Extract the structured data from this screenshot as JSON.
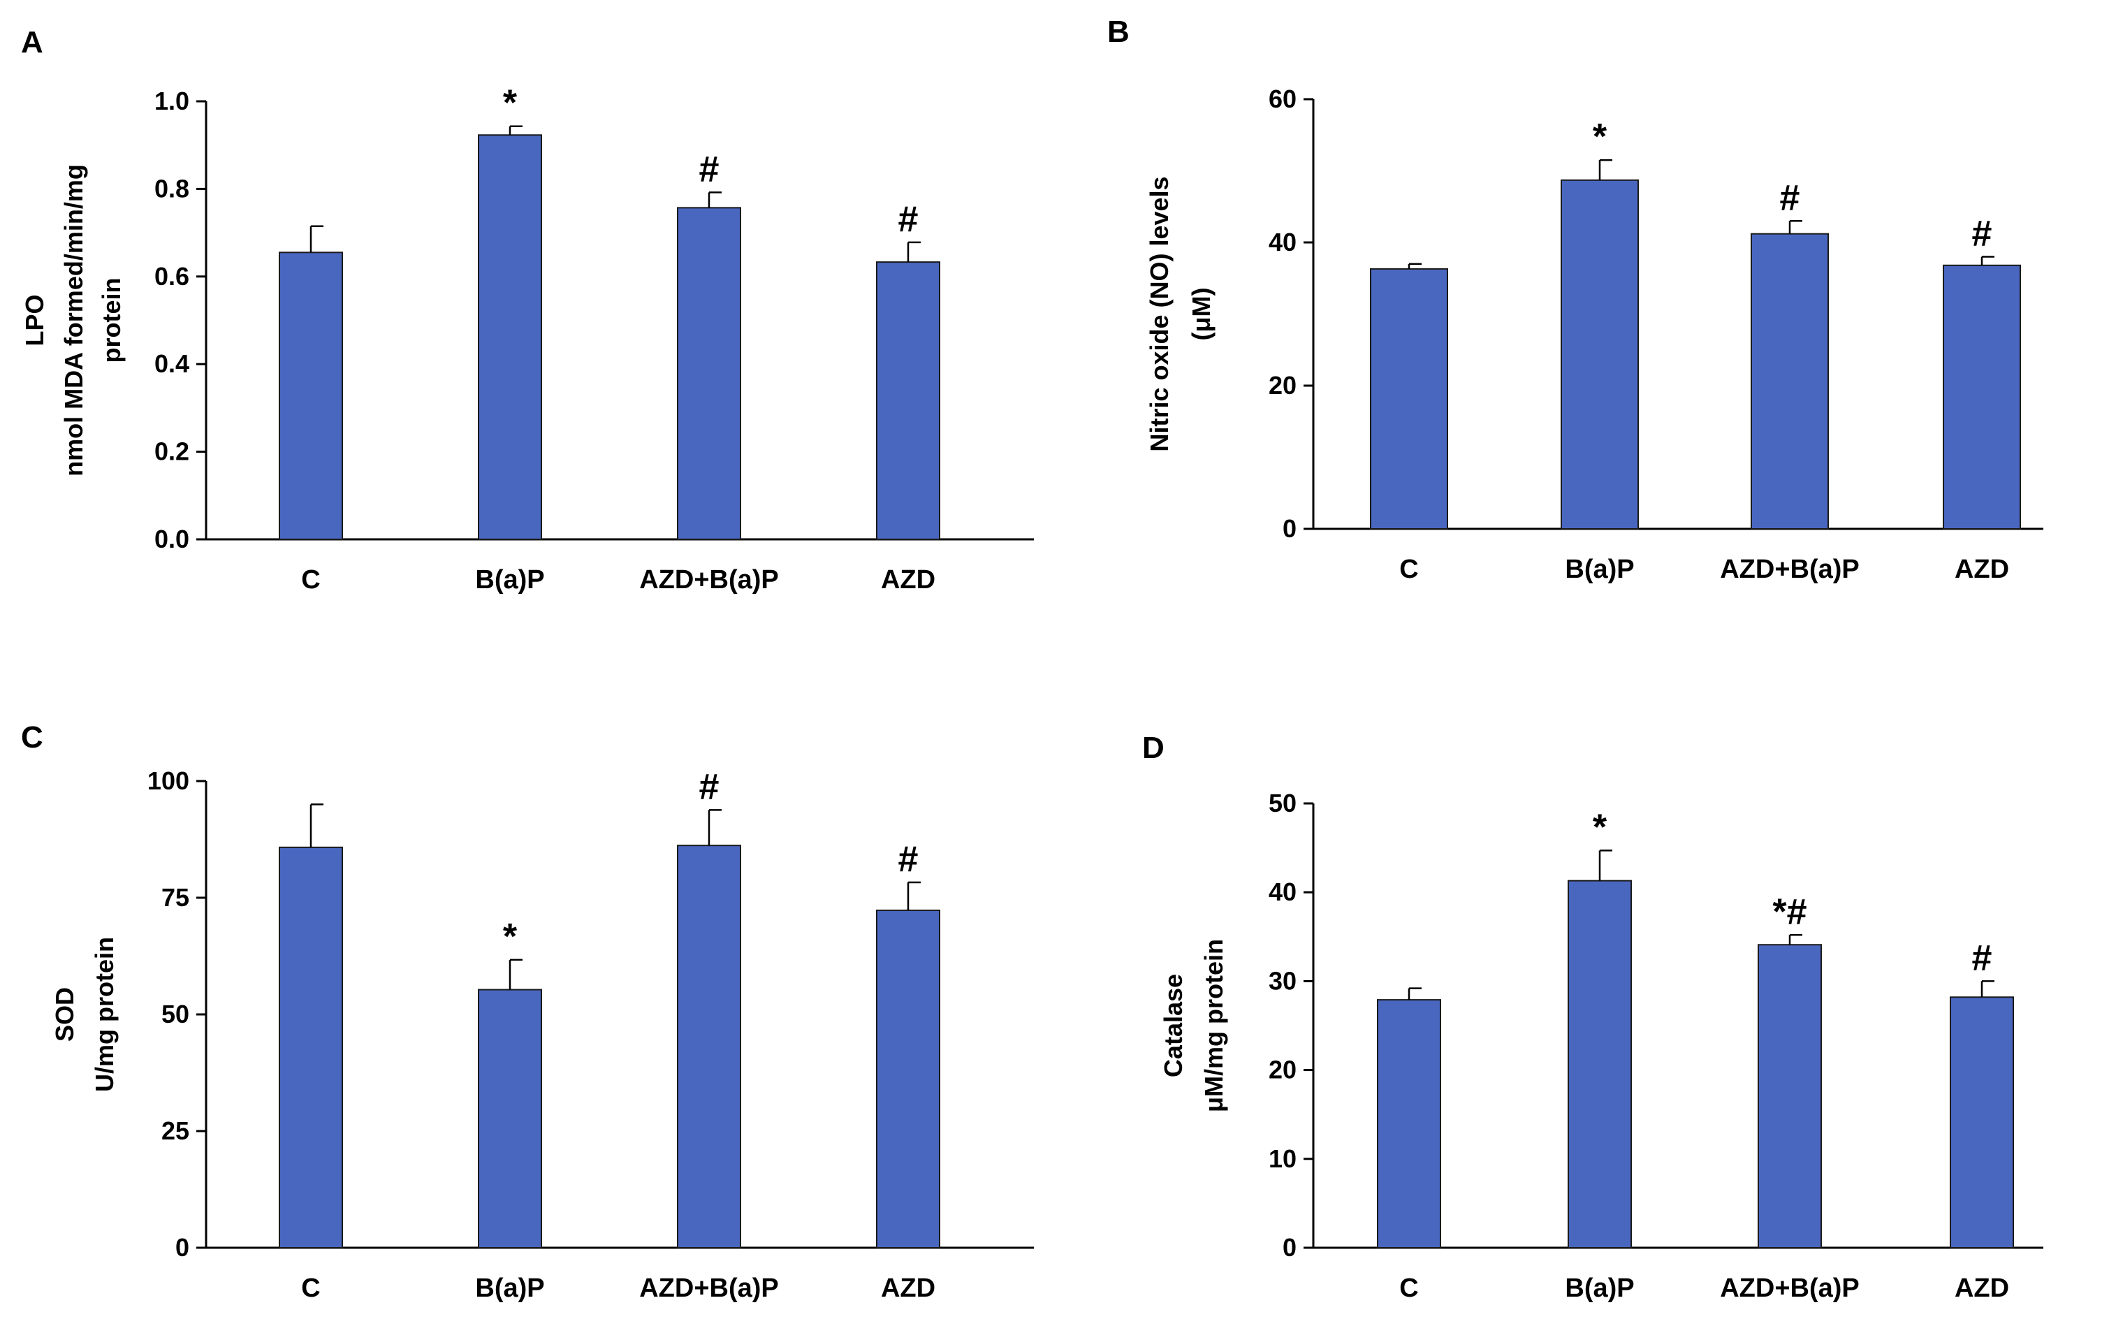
{
  "bar_color": "#4a67c0",
  "chart_data": [
    {
      "type": "bar",
      "panel": "A",
      "categories": [
        "C",
        "B(a)P",
        "AZD+B(a)P",
        "AZD"
      ],
      "values": [
        0.655,
        0.923,
        0.757,
        0.633
      ],
      "errors": [
        0.06,
        0.02,
        0.035,
        0.045
      ],
      "markers": [
        "",
        "*",
        "#",
        "#"
      ],
      "ylabel_lines": [
        "LPO",
        "nmol MDA formed/min/mg",
        "protein"
      ],
      "ylim": [
        0,
        1.0
      ],
      "yticks": [
        0.0,
        0.2,
        0.4,
        0.6,
        0.8,
        1.0
      ],
      "ytick_labels": [
        "0.0",
        "0.2",
        "0.4",
        "0.6",
        "0.8",
        "1.0"
      ]
    },
    {
      "type": "bar",
      "panel": "B",
      "categories": [
        "C",
        "B(a)P",
        "AZD+B(a)P",
        "AZD"
      ],
      "values": [
        36.3,
        48.7,
        41.2,
        36.8
      ],
      "errors": [
        0.7,
        2.8,
        1.8,
        1.2
      ],
      "markers": [
        "",
        "*",
        "#",
        "#"
      ],
      "ylabel_lines": [
        "Nitric oxide (NO) levels",
        "(μM)"
      ],
      "ylim": [
        0,
        60
      ],
      "yticks": [
        0,
        20,
        40,
        60
      ],
      "ytick_labels": [
        "0",
        "20",
        "40",
        "60"
      ]
    },
    {
      "type": "bar",
      "panel": "C",
      "categories": [
        "C",
        "B(a)P",
        "AZD+B(a)P",
        "AZD"
      ],
      "values": [
        85.8,
        55.3,
        86.2,
        72.3
      ],
      "errors": [
        9.2,
        6.4,
        7.6,
        6.0
      ],
      "markers": [
        "",
        "*",
        "#",
        "#"
      ],
      "ylabel_lines": [
        "SOD",
        "U/mg protein"
      ],
      "ylim": [
        0,
        100
      ],
      "yticks": [
        0,
        25,
        50,
        75,
        100
      ],
      "ytick_labels": [
        "0",
        "25",
        "50",
        "75",
        "100"
      ]
    },
    {
      "type": "bar",
      "panel": "D",
      "categories": [
        "C",
        "B(a)P",
        "AZD+B(a)P",
        "AZD"
      ],
      "values": [
        27.9,
        41.3,
        34.1,
        28.2
      ],
      "errors": [
        1.3,
        3.4,
        1.1,
        1.8
      ],
      "markers": [
        "",
        "*",
        "*#",
        "#"
      ],
      "ylabel_lines": [
        "Catalase",
        "μM/mg protein"
      ],
      "ylim": [
        0,
        50
      ],
      "yticks": [
        0,
        10,
        20,
        30,
        40,
        50
      ],
      "ytick_labels": [
        "0",
        "10",
        "20",
        "30",
        "40",
        "50"
      ]
    }
  ]
}
